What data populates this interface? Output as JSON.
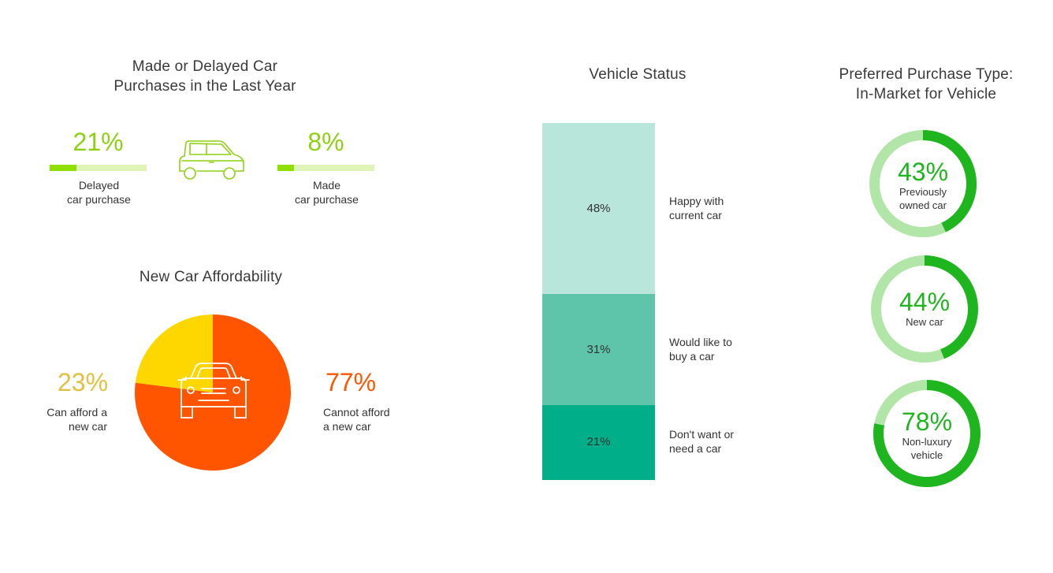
{
  "purchases": {
    "title": "Made or Delayed Car\nPurchases in the Last Year",
    "delayed": {
      "pct": "21%",
      "value": 21,
      "label": "Delayed\ncar purchase"
    },
    "made": {
      "pct": "8%",
      "value": 8,
      "label": "Made\ncar purchase"
    },
    "icon": "car-side-icon",
    "colors": {
      "track": "#dff5b8",
      "fill": "#8fe000",
      "text": "#8fd014"
    }
  },
  "affordability": {
    "title": "New Car Affordability",
    "icon": "car-front-icon",
    "can": {
      "pct": "23%",
      "value": 23,
      "label": "Can afford a\nnew car",
      "color": "#ffd700",
      "text_color": "#e2c040"
    },
    "cannot": {
      "pct": "77%",
      "value": 77,
      "label": "Cannot afford\na new car",
      "color": "#ff5500",
      "text_color": "#ff5500"
    }
  },
  "vehicle_status": {
    "title": "Vehicle Status",
    "segments": [
      {
        "pct": "48%",
        "value": 48,
        "label": "Happy with\ncurrent car",
        "color": "#b8e6db"
      },
      {
        "pct": "31%",
        "value": 31,
        "label": "Would like to\nbuy a car",
        "color": "#5ec4aa"
      },
      {
        "pct": "21%",
        "value": 21,
        "label": "Don't want or\nneed a car",
        "color": "#00ae8a"
      }
    ]
  },
  "purchase_type": {
    "title": "Preferred Purchase Type:\nIn-Market for Vehicle",
    "donuts": [
      {
        "pct": "43%",
        "value": 43,
        "label": "Previously\nowned car"
      },
      {
        "pct": "44%",
        "value": 44,
        "label": "New car"
      },
      {
        "pct": "78%",
        "value": 78,
        "label": "Non-luxury\nvehicle"
      }
    ],
    "colors": {
      "fill": "#1fb51f",
      "track": "#b2e6a8"
    }
  },
  "chart_data": [
    {
      "type": "bar",
      "title": "Made or Delayed Car Purchases in the Last Year",
      "categories": [
        "Delayed car purchase",
        "Made car purchase"
      ],
      "values": [
        21,
        8
      ],
      "ylim": [
        0,
        100
      ]
    },
    {
      "type": "pie",
      "title": "New Car Affordability",
      "categories": [
        "Can afford a new car",
        "Cannot afford a new car"
      ],
      "values": [
        23,
        77
      ]
    },
    {
      "type": "bar",
      "title": "Vehicle Status",
      "categories": [
        "Happy with current car",
        "Would like to buy a car",
        "Don't want or need a car"
      ],
      "values": [
        48,
        31,
        21
      ],
      "stacked": true
    },
    {
      "type": "pie",
      "title": "Preferred Purchase Type: In-Market for Vehicle",
      "categories": [
        "Previously owned car",
        "New car",
        "Non-luxury vehicle"
      ],
      "values": [
        43,
        44,
        78
      ]
    }
  ]
}
